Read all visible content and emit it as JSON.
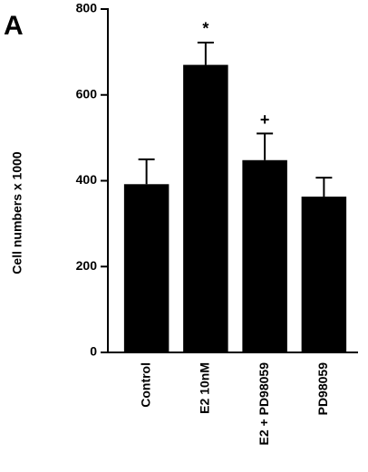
{
  "chart_data": {
    "type": "bar",
    "panel_label": "A",
    "ylabel": "Cell numbers x 1000",
    "categories": [
      "Control",
      "E2 10nM",
      "E2 + PD98059",
      "PD98059"
    ],
    "values": [
      392,
      670,
      448,
      363
    ],
    "errors": [
      58,
      52,
      62,
      44
    ],
    "color": "#000000",
    "ylim": [
      0,
      800
    ],
    "yticks": [
      0,
      200,
      400,
      600,
      800
    ],
    "annotations": [
      {
        "text": "*",
        "category": "E2 10nM"
      },
      {
        "text": "+",
        "category": "E2 + PD98059"
      }
    ]
  }
}
